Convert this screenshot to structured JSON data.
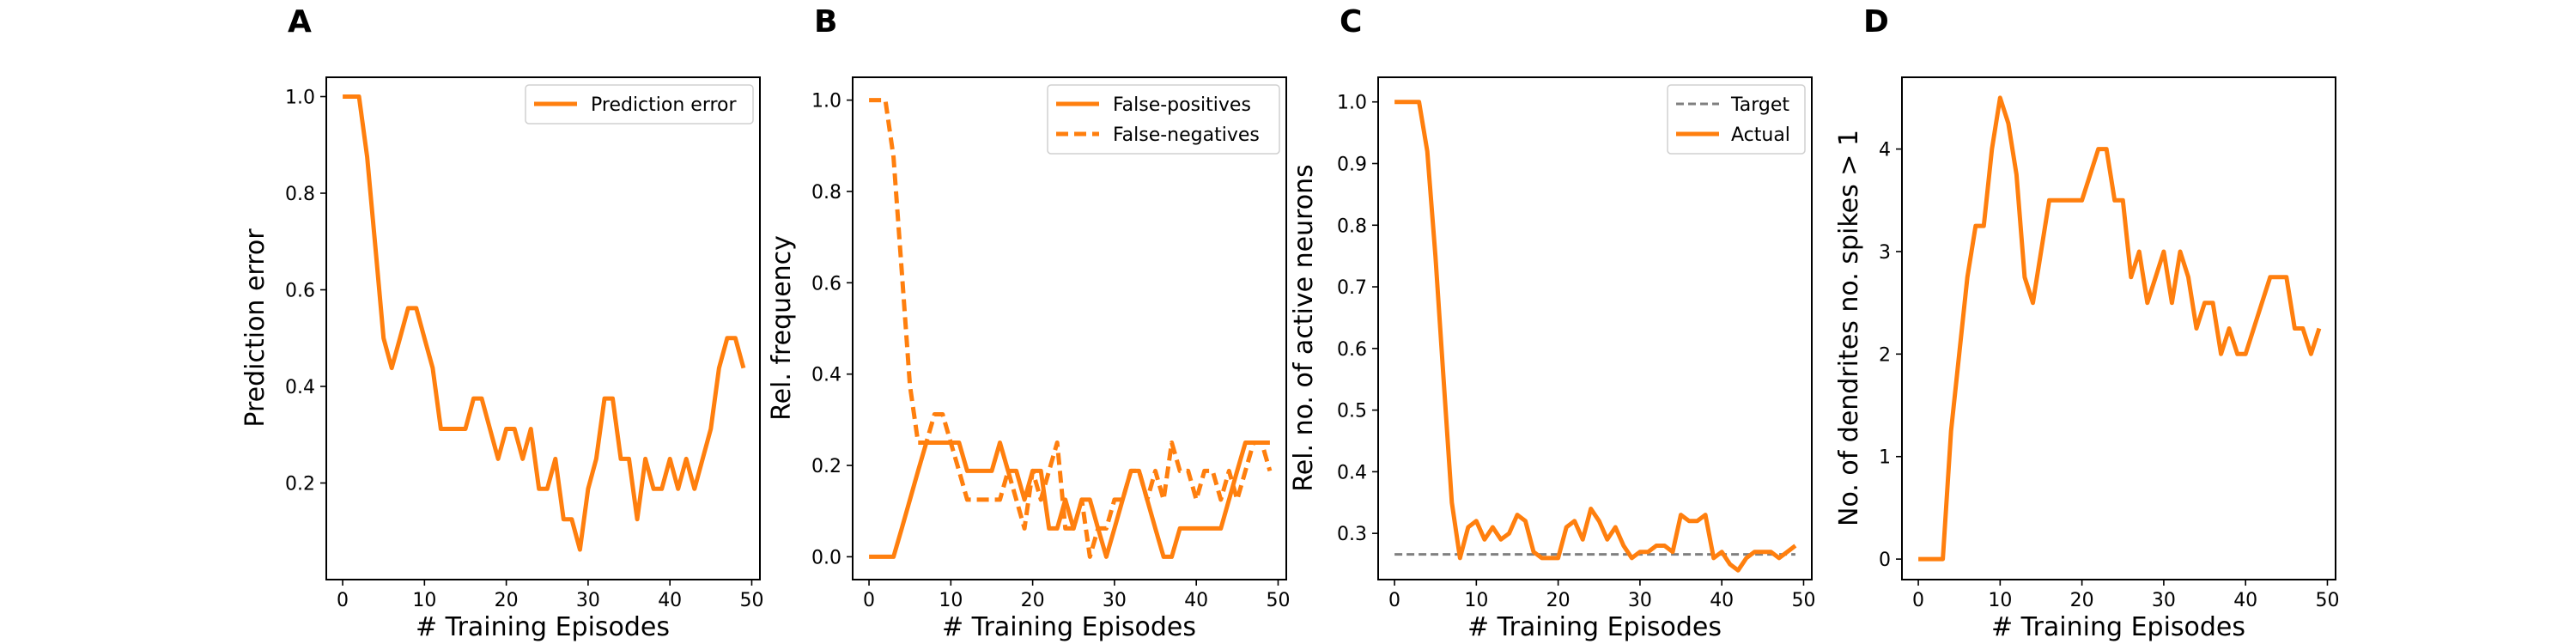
{
  "chart_data": [
    {
      "panel": "A",
      "type": "line",
      "xlabel": "# Training Episodes",
      "ylabel": "Prediction error",
      "xlim": [
        -2,
        51
      ],
      "ylim": [
        0.0,
        1.04
      ],
      "xticks": [
        0,
        10,
        20,
        30,
        40,
        50
      ],
      "yticks": [
        0.2,
        0.4,
        0.6,
        0.8,
        1.0
      ],
      "ytick_labels": [
        "0.2",
        "0.4",
        "0.6",
        "0.8",
        "1.0"
      ],
      "legend_position": "upper-right",
      "x": [
        0,
        1,
        2,
        3,
        4,
        5,
        6,
        7,
        8,
        9,
        10,
        11,
        12,
        13,
        14,
        15,
        16,
        17,
        18,
        19,
        20,
        21,
        22,
        23,
        24,
        25,
        26,
        27,
        28,
        29,
        30,
        31,
        32,
        33,
        34,
        35,
        36,
        37,
        38,
        39,
        40,
        41,
        42,
        43,
        44,
        45,
        46,
        47,
        48,
        49
      ],
      "series": [
        {
          "name": "Prediction error",
          "color": "#ff7f0e",
          "dash": "solid",
          "values": [
            1.0,
            1.0,
            1.0,
            0.875,
            0.688,
            0.5,
            0.438,
            0.5,
            0.562,
            0.562,
            0.5,
            0.438,
            0.312,
            0.312,
            0.312,
            0.312,
            0.375,
            0.375,
            0.312,
            0.25,
            0.312,
            0.312,
            0.25,
            0.312,
            0.188,
            0.188,
            0.25,
            0.125,
            0.125,
            0.062,
            0.188,
            0.25,
            0.375,
            0.375,
            0.25,
            0.25,
            0.125,
            0.25,
            0.188,
            0.188,
            0.25,
            0.188,
            0.25,
            0.188,
            0.25,
            0.312,
            0.438,
            0.5,
            0.5,
            0.438
          ]
        }
      ]
    },
    {
      "panel": "B",
      "type": "line",
      "xlabel": "# Training Episodes",
      "ylabel": "Rel. frequency",
      "xlim": [
        -2,
        51
      ],
      "ylim": [
        -0.05,
        1.05
      ],
      "xticks": [
        0,
        10,
        20,
        30,
        40,
        50
      ],
      "yticks": [
        0.0,
        0.2,
        0.4,
        0.6,
        0.8,
        1.0
      ],
      "ytick_labels": [
        "0.0",
        "0.2",
        "0.4",
        "0.6",
        "0.8",
        "1.0"
      ],
      "legend_position": "upper-right",
      "x": [
        0,
        1,
        2,
        3,
        4,
        5,
        6,
        7,
        8,
        9,
        10,
        11,
        12,
        13,
        14,
        15,
        16,
        17,
        18,
        19,
        20,
        21,
        22,
        23,
        24,
        25,
        26,
        27,
        28,
        29,
        30,
        31,
        32,
        33,
        34,
        35,
        36,
        37,
        38,
        39,
        40,
        41,
        42,
        43,
        44,
        45,
        46,
        47,
        48,
        49
      ],
      "series": [
        {
          "name": "False-positives",
          "color": "#ff7f0e",
          "dash": "solid",
          "values": [
            0.0,
            0.0,
            0.0,
            0.0,
            0.062,
            0.125,
            0.188,
            0.25,
            0.25,
            0.25,
            0.25,
            0.25,
            0.188,
            0.188,
            0.188,
            0.188,
            0.25,
            0.188,
            0.188,
            0.125,
            0.188,
            0.188,
            0.062,
            0.062,
            0.125,
            0.062,
            0.125,
            0.125,
            0.062,
            0.0,
            0.062,
            0.125,
            0.188,
            0.188,
            0.125,
            0.062,
            0.0,
            0.0,
            0.062,
            0.062,
            0.062,
            0.062,
            0.062,
            0.062,
            0.125,
            0.188,
            0.25,
            0.25,
            0.25,
            0.25
          ]
        },
        {
          "name": "False-negatives",
          "color": "#ff7f0e",
          "dash": "dashed",
          "values": [
            1.0,
            1.0,
            1.0,
            0.875,
            0.625,
            0.375,
            0.25,
            0.25,
            0.312,
            0.312,
            0.25,
            0.188,
            0.125,
            0.125,
            0.125,
            0.125,
            0.125,
            0.188,
            0.125,
            0.062,
            0.188,
            0.125,
            0.188,
            0.25,
            0.062,
            0.062,
            0.125,
            0.0,
            0.062,
            0.062,
            0.125,
            0.125,
            0.188,
            0.188,
            0.125,
            0.188,
            0.125,
            0.25,
            0.188,
            0.188,
            0.125,
            0.188,
            0.188,
            0.125,
            0.188,
            0.125,
            0.188,
            0.25,
            0.25,
            0.188
          ]
        }
      ]
    },
    {
      "panel": "C",
      "type": "line",
      "xlabel": "# Training Episodes",
      "ylabel": "Rel. no. of active neurons",
      "xlim": [
        -2,
        51
      ],
      "ylim": [
        0.225,
        1.04
      ],
      "xticks": [
        0,
        10,
        20,
        30,
        40,
        50
      ],
      "yticks": [
        0.3,
        0.4,
        0.5,
        0.6,
        0.7,
        0.8,
        0.9,
        1.0
      ],
      "ytick_labels": [
        "0.3",
        "0.4",
        "0.5",
        "0.6",
        "0.7",
        "0.8",
        "0.9",
        "1.0"
      ],
      "legend_position": "upper-right",
      "x": [
        0,
        1,
        2,
        3,
        4,
        5,
        6,
        7,
        8,
        9,
        10,
        11,
        12,
        13,
        14,
        15,
        16,
        17,
        18,
        19,
        20,
        21,
        22,
        23,
        24,
        25,
        26,
        27,
        28,
        29,
        30,
        31,
        32,
        33,
        34,
        35,
        36,
        37,
        38,
        39,
        40,
        41,
        42,
        43,
        44,
        45,
        46,
        47,
        48,
        49
      ],
      "series": [
        {
          "name": "Target",
          "color": "#808080",
          "dash": "dashed",
          "values": [
            0.266,
            0.266,
            0.266,
            0.266,
            0.266,
            0.266,
            0.266,
            0.266,
            0.266,
            0.266,
            0.266,
            0.266,
            0.266,
            0.266,
            0.266,
            0.266,
            0.266,
            0.266,
            0.266,
            0.266,
            0.266,
            0.266,
            0.266,
            0.266,
            0.266,
            0.266,
            0.266,
            0.266,
            0.266,
            0.266,
            0.266,
            0.266,
            0.266,
            0.266,
            0.266,
            0.266,
            0.266,
            0.266,
            0.266,
            0.266,
            0.266,
            0.266,
            0.266,
            0.266,
            0.266,
            0.266,
            0.266,
            0.266,
            0.266,
            0.266
          ]
        },
        {
          "name": "Actual",
          "color": "#ff7f0e",
          "dash": "solid",
          "values": [
            1.0,
            1.0,
            1.0,
            1.0,
            0.92,
            0.75,
            0.55,
            0.35,
            0.26,
            0.31,
            0.32,
            0.29,
            0.31,
            0.29,
            0.3,
            0.33,
            0.32,
            0.27,
            0.26,
            0.26,
            0.26,
            0.31,
            0.32,
            0.29,
            0.34,
            0.32,
            0.29,
            0.31,
            0.28,
            0.26,
            0.27,
            0.27,
            0.28,
            0.28,
            0.27,
            0.33,
            0.32,
            0.32,
            0.33,
            0.26,
            0.27,
            0.25,
            0.24,
            0.26,
            0.27,
            0.27,
            0.27,
            0.26,
            0.27,
            0.28
          ]
        }
      ]
    },
    {
      "panel": "D",
      "type": "line",
      "xlabel": "# Training Episodes",
      "ylabel": "No. of dendrites no. spikes > 1",
      "xlim": [
        -2,
        51
      ],
      "ylim": [
        -0.2,
        4.7
      ],
      "xticks": [
        0,
        10,
        20,
        30,
        40,
        50
      ],
      "yticks": [
        0,
        1,
        2,
        3,
        4
      ],
      "ytick_labels": [
        "0",
        "1",
        "2",
        "3",
        "4"
      ],
      "legend_position": "none",
      "x": [
        0,
        1,
        2,
        3,
        4,
        5,
        6,
        7,
        8,
        9,
        10,
        11,
        12,
        13,
        14,
        15,
        16,
        17,
        18,
        19,
        20,
        21,
        22,
        23,
        24,
        25,
        26,
        27,
        28,
        29,
        30,
        31,
        32,
        33,
        34,
        35,
        36,
        37,
        38,
        39,
        40,
        41,
        42,
        43,
        44,
        45,
        46,
        47,
        48,
        49
      ],
      "series": [
        {
          "name": "",
          "color": "#ff7f0e",
          "dash": "solid",
          "values": [
            0,
            0,
            0,
            0,
            1.25,
            2.0,
            2.75,
            3.25,
            3.25,
            4.0,
            4.5,
            4.25,
            3.75,
            2.75,
            2.5,
            3.0,
            3.5,
            3.5,
            3.5,
            3.5,
            3.5,
            3.75,
            4.0,
            4.0,
            3.5,
            3.5,
            2.75,
            3.0,
            2.5,
            2.75,
            3.0,
            2.5,
            3.0,
            2.75,
            2.25,
            2.5,
            2.5,
            2.0,
            2.25,
            2.0,
            2.0,
            2.25,
            2.5,
            2.75,
            2.75,
            2.75,
            2.25,
            2.25,
            2.0,
            2.25
          ]
        }
      ]
    }
  ],
  "panels": [
    {
      "letter": "A"
    },
    {
      "letter": "B"
    },
    {
      "letter": "C"
    },
    {
      "letter": "D"
    }
  ]
}
